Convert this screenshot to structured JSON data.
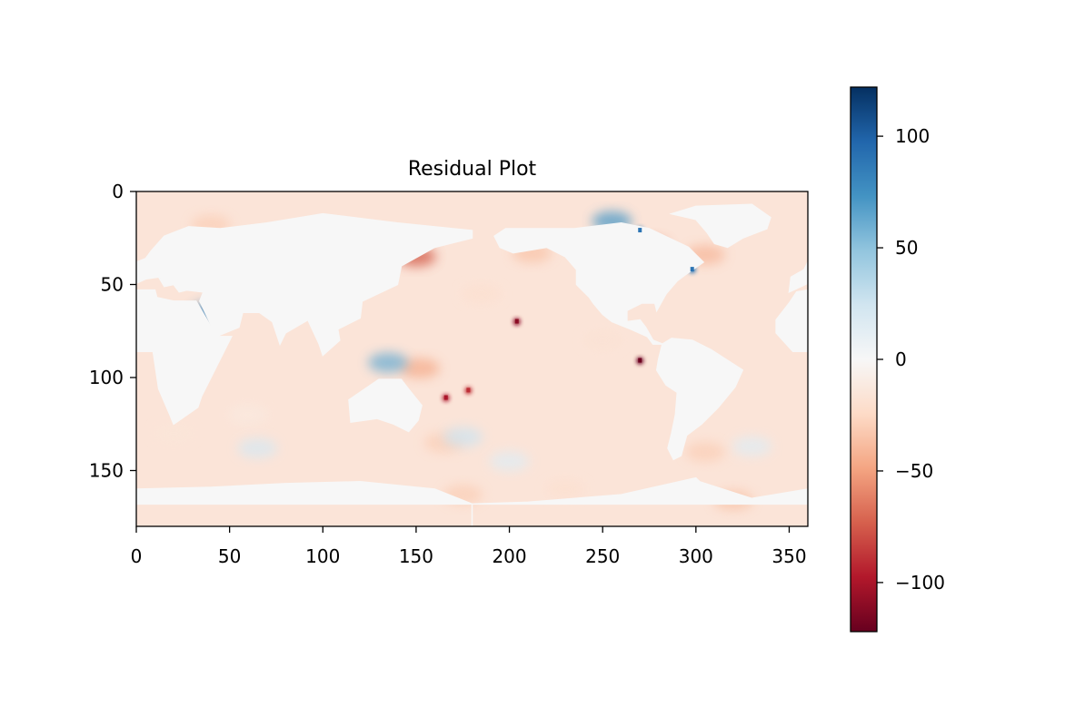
{
  "chart_data": {
    "type": "heatmap",
    "title": "Residual Plot",
    "xlabel": "",
    "ylabel": "",
    "xlim": [
      0,
      360
    ],
    "ylim": [
      180,
      0
    ],
    "y_axis_inverted": true,
    "x_ticks": [
      0,
      50,
      100,
      150,
      200,
      250,
      300,
      350
    ],
    "y_ticks": [
      0,
      50,
      100,
      150
    ],
    "colormap": "RdBu",
    "colorbar": {
      "vmin": -122,
      "vmax": 122,
      "ticks": [
        100,
        50,
        0,
        -50,
        -100
      ],
      "tick_labels": [
        "100",
        "50",
        "0",
        "−50",
        "−100"
      ],
      "stops": [
        {
          "offset": 0.0,
          "color": "#053061"
        },
        {
          "offset": 0.1,
          "color": "#2166ac"
        },
        {
          "offset": 0.2,
          "color": "#4393c3"
        },
        {
          "offset": 0.3,
          "color": "#92c5de"
        },
        {
          "offset": 0.4,
          "color": "#d1e5f0"
        },
        {
          "offset": 0.5,
          "color": "#f7f7f7"
        },
        {
          "offset": 0.6,
          "color": "#fddbc7"
        },
        {
          "offset": 0.7,
          "color": "#f4a582"
        },
        {
          "offset": 0.8,
          "color": "#d6604d"
        },
        {
          "offset": 0.9,
          "color": "#b2182b"
        },
        {
          "offset": 1.0,
          "color": "#67001f"
        }
      ]
    },
    "land_value": 0,
    "continents": [
      {
        "name": "Africa",
        "outline": [
          [
            0,
            37
          ],
          [
            10,
            37
          ],
          [
            11,
            33
          ],
          [
            20,
            31
          ],
          [
            30,
            31
          ],
          [
            32,
            31
          ],
          [
            43,
            12
          ],
          [
            51,
            12
          ],
          [
            40,
            -10
          ],
          [
            35,
            -20
          ],
          [
            33,
            -26
          ],
          [
            20,
            -35
          ],
          [
            18,
            -30
          ],
          [
            12,
            -16
          ],
          [
            9,
            4
          ],
          [
            -8,
            4
          ],
          [
            -17,
            14
          ],
          [
            -17,
            21
          ],
          [
            -10,
            30
          ],
          [
            -6,
            36
          ],
          [
            0,
            37
          ]
        ]
      },
      {
        "name": "Eurasia",
        "outline": [
          [
            -10,
            36
          ],
          [
            -9,
            44
          ],
          [
            -2,
            48
          ],
          [
            0,
            52
          ],
          [
            5,
            54
          ],
          [
            8,
            58
          ],
          [
            15,
            66
          ],
          [
            28,
            71
          ],
          [
            45,
            70
          ],
          [
            70,
            73
          ],
          [
            100,
            78
          ],
          [
            140,
            73
          ],
          [
            180,
            69
          ],
          [
            180,
            65
          ],
          [
            160,
            60
          ],
          [
            142,
            50
          ],
          [
            140,
            40
          ],
          [
            121,
            31
          ],
          [
            120,
            22
          ],
          [
            108,
            16
          ],
          [
            109,
            10
          ],
          [
            100,
            2
          ],
          [
            98,
            8
          ],
          [
            92,
            21
          ],
          [
            80,
            14
          ],
          [
            77,
            8
          ],
          [
            73,
            20
          ],
          [
            66,
            25
          ],
          [
            57,
            25
          ],
          [
            55,
            17
          ],
          [
            45,
            13
          ],
          [
            43,
            12
          ],
          [
            36,
            27
          ],
          [
            34,
            31
          ],
          [
            36,
            36
          ],
          [
            27,
            37
          ],
          [
            23,
            36
          ],
          [
            20,
            40
          ],
          [
            15,
            39
          ],
          [
            12,
            44
          ],
          [
            5,
            43
          ],
          [
            -10,
            36
          ]
        ]
      },
      {
        "name": "Australia",
        "outline": [
          [
            114,
            -22
          ],
          [
            130,
            -11
          ],
          [
            142,
            -11
          ],
          [
            145,
            -15
          ],
          [
            153,
            -25
          ],
          [
            151,
            -33
          ],
          [
            146,
            -39
          ],
          [
            138,
            -35
          ],
          [
            129,
            -32
          ],
          [
            115,
            -34
          ],
          [
            114,
            -22
          ]
        ]
      },
      {
        "name": "North America",
        "outline": [
          [
            -168,
            66
          ],
          [
            -162,
            70
          ],
          [
            -141,
            70
          ],
          [
            -125,
            70
          ],
          [
            -100,
            73
          ],
          [
            -85,
            70
          ],
          [
            -64,
            60
          ],
          [
            -56,
            52
          ],
          [
            -66,
            45
          ],
          [
            -70,
            42
          ],
          [
            -76,
            35
          ],
          [
            -81,
            26
          ],
          [
            -82,
            30
          ],
          [
            -89,
            30
          ],
          [
            -97,
            26
          ],
          [
            -97,
            20
          ],
          [
            -90,
            21
          ],
          [
            -87,
            17
          ],
          [
            -83,
            10
          ],
          [
            -78,
            8
          ],
          [
            -83,
            8
          ],
          [
            -86,
            12
          ],
          [
            -95,
            16
          ],
          [
            -105,
            20
          ],
          [
            -110,
            24
          ],
          [
            -115,
            30
          ],
          [
            -117,
            33
          ],
          [
            -124,
            40
          ],
          [
            -124,
            48
          ],
          [
            -130,
            55
          ],
          [
            -140,
            60
          ],
          [
            -152,
            58
          ],
          [
            -158,
            57
          ],
          [
            -165,
            60
          ],
          [
            -168,
            66
          ]
        ]
      },
      {
        "name": "Greenland",
        "outline": [
          [
            -73,
            78
          ],
          [
            -60,
            82
          ],
          [
            -30,
            83
          ],
          [
            -20,
            76
          ],
          [
            -22,
            70
          ],
          [
            -35,
            65
          ],
          [
            -43,
            60
          ],
          [
            -50,
            62
          ],
          [
            -54,
            68
          ],
          [
            -60,
            75
          ],
          [
            -73,
            78
          ]
        ]
      },
      {
        "name": "South America",
        "outline": [
          [
            -78,
            8
          ],
          [
            -73,
            11
          ],
          [
            -62,
            10
          ],
          [
            -52,
            5
          ],
          [
            -35,
            -6
          ],
          [
            -39,
            -15
          ],
          [
            -48,
            -26
          ],
          [
            -57,
            -35
          ],
          [
            -65,
            -41
          ],
          [
            -68,
            -52
          ],
          [
            -72,
            -54
          ],
          [
            -75,
            -48
          ],
          [
            -73,
            -40
          ],
          [
            -71,
            -30
          ],
          [
            -70,
            -18
          ],
          [
            -76,
            -14
          ],
          [
            -81,
            -6
          ],
          [
            -80,
            0
          ],
          [
            -78,
            8
          ]
        ]
      },
      {
        "name": "Antarctica",
        "outline": [
          [
            -180,
            -78
          ],
          [
            -150,
            -77
          ],
          [
            -100,
            -73
          ],
          [
            -60,
            -64
          ],
          [
            -58,
            -66
          ],
          [
            -30,
            -75
          ],
          [
            0,
            -70
          ],
          [
            40,
            -69
          ],
          [
            80,
            -67
          ],
          [
            120,
            -66
          ],
          [
            160,
            -70
          ],
          [
            180,
            -78
          ],
          [
            180,
            -90
          ],
          [
            -180,
            -90
          ],
          [
            -180,
            -78
          ]
        ]
      }
    ],
    "anomalies": [
      {
        "region": "Sea of Okhotsk",
        "lon": 150,
        "lat": 55,
        "value": -75
      },
      {
        "region": "Gulf of Alaska",
        "lon": 212,
        "lat": 57,
        "value": -35
      },
      {
        "region": "Hudson Bay",
        "lon": 275,
        "lat": 60,
        "value": -60
      },
      {
        "region": "Labrador Sea",
        "lon": 305,
        "lat": 56,
        "value": -40
      },
      {
        "region": "Gulf of St. Lawrence",
        "lon": 298,
        "lat": 48,
        "value": 90
      },
      {
        "region": "Canadian Archipelago",
        "lon": 255,
        "lat": 74,
        "value": 70
      },
      {
        "region": "Arctic coast",
        "lon": 270,
        "lat": 69,
        "value": 90
      },
      {
        "region": "Caspian Sea",
        "lon": 40,
        "lat": 25,
        "value": 80
      },
      {
        "region": "Southern Ocean",
        "lon": 65,
        "lat": -48,
        "value": 20
      },
      {
        "region": "Southern Ocean",
        "lon": 200,
        "lat": -55,
        "value": 15
      },
      {
        "region": "Southern Ocean",
        "lon": 330,
        "lat": -47,
        "value": 15
      },
      {
        "region": "Southern Ocean",
        "lon": 20,
        "lat": -40,
        "value": -15
      },
      {
        "region": "Southern Ocean",
        "lon": 230,
        "lat": -70,
        "value": -20
      },
      {
        "region": "Weddell Sea",
        "lon": 320,
        "lat": -76,
        "value": -35
      },
      {
        "region": "Ross Sea",
        "lon": 175,
        "lat": -73,
        "value": -30
      },
      {
        "region": "Tasman Sea",
        "lon": 165,
        "lat": -45,
        "value": -30
      },
      {
        "region": "New Zealand",
        "lon": 175,
        "lat": -42,
        "value": 25
      },
      {
        "region": "Southwest Atlantic",
        "lon": 305,
        "lat": -50,
        "value": -30
      },
      {
        "region": "Pacific island",
        "lon": 204,
        "lat": 20,
        "value": -110
      },
      {
        "region": "Galapagos",
        "lon": 270,
        "lat": -1,
        "value": -120
      },
      {
        "region": "Pacific island",
        "lon": 166,
        "lat": -21,
        "value": -100
      },
      {
        "region": "Pacific island",
        "lon": 178,
        "lat": -17,
        "value": -90
      },
      {
        "region": "Coral Sea",
        "lon": 152,
        "lat": -5,
        "value": -45
      },
      {
        "region": "Indonesia",
        "lon": 135,
        "lat": -2,
        "value": 60
      },
      {
        "region": "North Pacific",
        "lon": 185,
        "lat": 35,
        "value": -20
      },
      {
        "region": "Eastern Tropical Pacific",
        "lon": 250,
        "lat": 10,
        "value": -18
      },
      {
        "region": "Indian Ocean",
        "lon": 60,
        "lat": -30,
        "value": -12
      },
      {
        "region": "Barents Sea",
        "lon": 40,
        "lat": 72,
        "value": -30
      }
    ]
  }
}
